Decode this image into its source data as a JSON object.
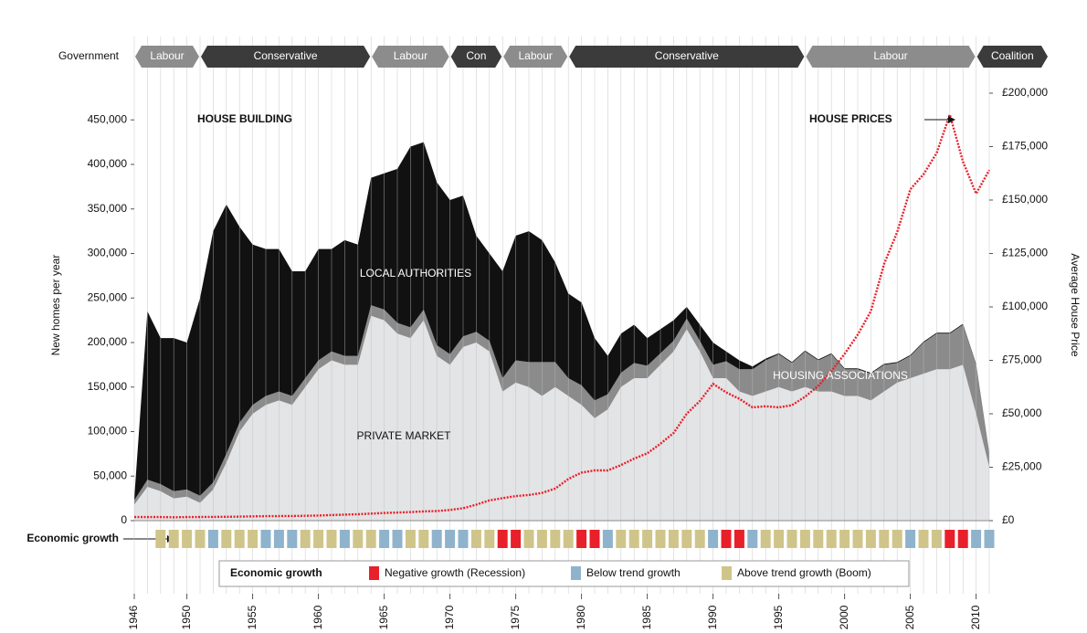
{
  "chart_data": {
    "type": "stacked-area",
    "x": [
      1946,
      1947,
      1948,
      1949,
      1950,
      1951,
      1952,
      1953,
      1954,
      1955,
      1956,
      1957,
      1958,
      1959,
      1960,
      1961,
      1962,
      1963,
      1964,
      1965,
      1966,
      1967,
      1968,
      1969,
      1970,
      1971,
      1972,
      1973,
      1974,
      1975,
      1976,
      1977,
      1978,
      1979,
      1980,
      1981,
      1982,
      1983,
      1984,
      1985,
      1986,
      1987,
      1988,
      1989,
      1990,
      1991,
      1992,
      1993,
      1994,
      1995,
      1996,
      1997,
      1998,
      1999,
      2000,
      2001,
      2002,
      2003,
      2004,
      2005,
      2006,
      2007,
      2008,
      2009,
      2010,
      2011
    ],
    "xlim": [
      1946,
      2011
    ],
    "xticks": [
      1946,
      1950,
      1955,
      1960,
      1965,
      1970,
      1975,
      1980,
      1985,
      1990,
      1995,
      2000,
      2005,
      2010
    ],
    "ylim": [
      0,
      480000
    ],
    "yticks": [
      0,
      {
        "value": 50000,
        "label": "50,000"
      },
      {
        "value": 100000,
        "label": "100,000"
      },
      {
        "value": 150000,
        "label": "150,000"
      },
      {
        "value": 200000,
        "label": "200,000"
      },
      {
        "value": 250000,
        "label": "250,000"
      },
      {
        "value": 300000,
        "label": "300,000"
      },
      {
        "value": 350000,
        "label": "350,000"
      },
      {
        "value": 400000,
        "label": "400,000"
      },
      {
        "value": 450000,
        "label": "450,000"
      }
    ],
    "y2lim": [
      0,
      200000
    ],
    "y2ticks": [
      {
        "value": 0,
        "label": "£0"
      },
      {
        "value": 25000,
        "label": "£25,000"
      },
      {
        "value": 50000,
        "label": "£50,000"
      },
      {
        "value": 75000,
        "label": "£75,000"
      },
      {
        "value": 100000,
        "label": "£100,000"
      },
      {
        "value": 125000,
        "label": "£125,000"
      },
      {
        "value": 150000,
        "label": "£150,000"
      },
      {
        "value": 175000,
        "label": "£175,000"
      },
      {
        "value": 200000,
        "label": "£200,000"
      }
    ],
    "ylabel": "New homes per year",
    "y2label": "Average House Price",
    "annotations": {
      "building": "HOUSE BUILDING",
      "prices": "HOUSE PRICES",
      "la": "LOCAL AUTHORITIES",
      "ha": "HOUSING ASSOCIATIONS",
      "pm": "PRIVATE MARKET"
    },
    "series": [
      {
        "name": "PRIVATE MARKET",
        "color": "#e3e4e6",
        "values": [
          18000,
          38000,
          33000,
          25000,
          27000,
          20000,
          35000,
          65000,
          100000,
          120000,
          130000,
          135000,
          130000,
          150000,
          170000,
          180000,
          175000,
          175000,
          230000,
          225000,
          210000,
          205000,
          225000,
          185000,
          175000,
          195000,
          200000,
          190000,
          145000,
          155000,
          150000,
          140000,
          150000,
          140000,
          130000,
          115000,
          125000,
          150000,
          160000,
          160000,
          175000,
          190000,
          215000,
          190000,
          160000,
          160000,
          145000,
          140000,
          145000,
          150000,
          145000,
          150000,
          145000,
          145000,
          140000,
          140000,
          135000,
          145000,
          155000,
          160000,
          165000,
          170000,
          170000,
          175000,
          120000,
          60000
        ]
      },
      {
        "name": "HOUSING ASSOCIATIONS",
        "color": "#8b8b8b",
        "values": [
          5000,
          8000,
          8000,
          8000,
          8000,
          8000,
          8000,
          10000,
          10000,
          10000,
          10000,
          10000,
          10000,
          10000,
          10000,
          10000,
          10000,
          10000,
          12000,
          12000,
          12000,
          12000,
          12000,
          12000,
          12000,
          12000,
          12000,
          12000,
          15000,
          25000,
          28000,
          38000,
          28000,
          20000,
          22000,
          20000,
          17000,
          16000,
          17000,
          14000,
          13000,
          12000,
          12000,
          12000,
          15000,
          19000,
          25000,
          30000,
          35000,
          37000,
          32000,
          40000,
          35000,
          42000,
          30000,
          30000,
          30000,
          30000,
          22000,
          25000,
          35000,
          40000,
          40000,
          45000,
          55000,
          15000
        ]
      },
      {
        "name": "LOCAL AUTHORITIES",
        "color": "#111111",
        "values": [
          2000,
          189000,
          164000,
          172000,
          165000,
          222000,
          282000,
          280000,
          220000,
          180000,
          165000,
          160000,
          140000,
          120000,
          125000,
          115000,
          130000,
          125000,
          143000,
          153000,
          173000,
          203000,
          188000,
          183000,
          173000,
          158000,
          108000,
          98000,
          120000,
          140000,
          147000,
          137000,
          112000,
          95000,
          93000,
          70000,
          43000,
          44000,
          43000,
          31000,
          27000,
          23000,
          13000,
          18000,
          25000,
          11000,
          10000,
          3000,
          2000,
          1000,
          1000,
          1000,
          1000,
          1000,
          1000,
          1000,
          1000,
          1000,
          1000,
          1000,
          1000,
          1000,
          1000,
          1000,
          1000,
          1000
        ]
      },
      {
        "name": "HOUSE PRICES",
        "color": "#e8202a",
        "axis": "y2",
        "values": [
          1700,
          1650,
          1650,
          1600,
          1650,
          1700,
          1750,
          1800,
          1900,
          2000,
          2100,
          2150,
          2200,
          2250,
          2400,
          2600,
          2800,
          3000,
          3300,
          3600,
          3800,
          4000,
          4300,
          4500,
          5000,
          5800,
          7500,
          9500,
          10500,
          11500,
          12000,
          13000,
          15000,
          19500,
          22500,
          23500,
          23500,
          26000,
          29000,
          31500,
          36000,
          41000,
          50000,
          56000,
          64000,
          60000,
          57000,
          53000,
          53500,
          53000,
          54000,
          58000,
          63000,
          70000,
          78000,
          87000,
          98000,
          120000,
          135000,
          155000,
          162000,
          172000,
          190000,
          168000,
          153000,
          164000
        ]
      }
    ],
    "government": {
      "label": "Government",
      "bands": [
        {
          "name": "Labour",
          "start": 1946,
          "color": "#8c8c8c"
        },
        {
          "name": "Conservative",
          "start": 1951,
          "color": "#3b3b3b"
        },
        {
          "name": "Labour",
          "start": 1964,
          "color": "#8c8c8c"
        },
        {
          "name": "Con",
          "start": 1970,
          "color": "#3b3b3b"
        },
        {
          "name": "Labour",
          "start": 1974,
          "color": "#8c8c8c"
        },
        {
          "name": "Conservative",
          "start": 1979,
          "color": "#3b3b3b"
        },
        {
          "name": "Labour",
          "start": 1997,
          "color": "#8c8c8c"
        },
        {
          "name": "Coalition",
          "start": 2010,
          "color": "#3b3b3b"
        }
      ]
    },
    "economic_growth": {
      "label": "Economic growth",
      "legend_title": "Economic growth",
      "legend": [
        {
          "name": "Negative growth (Recession)",
          "color": "#e8202a"
        },
        {
          "name": "Below trend growth",
          "color": "#8fb3cc"
        },
        {
          "name": "Above trend growth (Boom)",
          "color": "#cfc58a"
        }
      ],
      "values": [
        null,
        null,
        2,
        2,
        2,
        2,
        1,
        2,
        2,
        2,
        1,
        1,
        1,
        2,
        2,
        2,
        1,
        2,
        2,
        1,
        1,
        2,
        2,
        1,
        1,
        1,
        2,
        2,
        0,
        0,
        2,
        2,
        2,
        2,
        0,
        0,
        1,
        2,
        2,
        2,
        2,
        2,
        2,
        2,
        1,
        0,
        0,
        1,
        2,
        2,
        2,
        2,
        2,
        2,
        2,
        2,
        2,
        2,
        2,
        1,
        2,
        2,
        0,
        0,
        1,
        1
      ]
    }
  }
}
